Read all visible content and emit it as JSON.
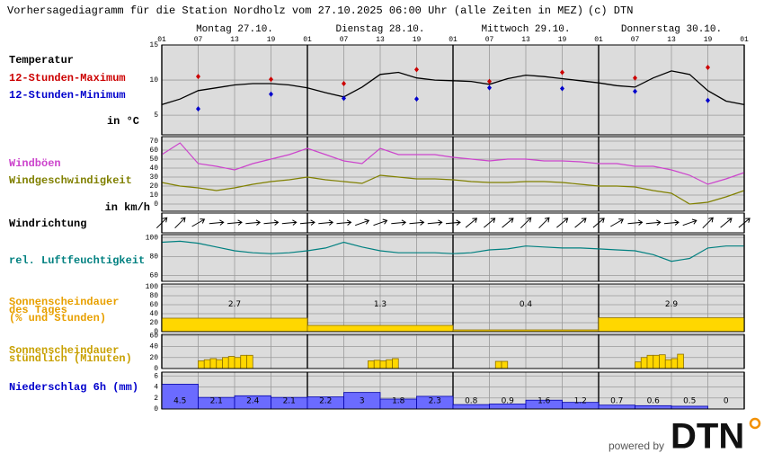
{
  "title": "Vorhersagediagramm für die Station Nordholz vom 27.10.2025 06:00 Uhr (alle Zeiten in MEZ)",
  "credit": "(c) DTN",
  "footer": {
    "powered_by": "powered by",
    "logo": "DTN"
  },
  "x_axis": {
    "xlim": [
      0,
      96
    ],
    "xticks": [
      {
        "value": 0,
        "label": "01"
      },
      {
        "value": 6,
        "label": "07"
      },
      {
        "value": 12,
        "label": "13"
      },
      {
        "value": 18,
        "label": "19"
      },
      {
        "value": 24,
        "label": "01"
      },
      {
        "value": 30,
        "label": "07"
      },
      {
        "value": 36,
        "label": "13"
      },
      {
        "value": 42,
        "label": "19"
      },
      {
        "value": 48,
        "label": "01"
      },
      {
        "value": 54,
        "label": "07"
      },
      {
        "value": 60,
        "label": "13"
      },
      {
        "value": 66,
        "label": "19"
      },
      {
        "value": 72,
        "label": "01"
      },
      {
        "value": 78,
        "label": "07"
      },
      {
        "value": 84,
        "label": "13"
      },
      {
        "value": 90,
        "label": "19"
      },
      {
        "value": 96,
        "label": "01"
      }
    ],
    "days": [
      "Montag 27.10.",
      "Dienstag 28.10.",
      "Mittwoch 29.10.",
      "Donnerstag 30.10."
    ]
  },
  "chart_data": [
    {
      "type": "line",
      "label": "Temperatur",
      "unit_label": "in °C",
      "ylim": [
        2.2,
        15
      ],
      "yticks": [
        5,
        10,
        15
      ],
      "grid": true,
      "line": {
        "color": "#000000",
        "x": [
          0,
          3,
          6,
          9,
          12,
          15,
          18,
          21,
          24,
          27,
          30,
          33,
          36,
          39,
          42,
          45,
          48,
          51,
          54,
          57,
          60,
          63,
          66,
          69,
          72,
          75,
          78,
          81,
          84,
          87,
          90,
          93,
          96
        ],
        "values": [
          6.5,
          7.3,
          8.5,
          8.9,
          9.3,
          9.5,
          9.5,
          9.3,
          8.9,
          8.2,
          7.6,
          9.0,
          10.8,
          11.1,
          10.3,
          10.0,
          9.9,
          9.8,
          9.4,
          10.2,
          10.7,
          10.5,
          10.2,
          9.9,
          9.6,
          9.2,
          9.0,
          10.3,
          11.3,
          10.8,
          8.5,
          7.0,
          6.5
        ]
      },
      "series": [
        {
          "name": "12-Stunden-Maximum",
          "color": "#cc0000",
          "x": [
            6,
            18,
            30,
            42,
            54,
            66,
            78,
            90
          ],
          "values": [
            10.5,
            10.1,
            9.5,
            11.5,
            9.8,
            11.1,
            10.3,
            11.8
          ]
        },
        {
          "name": "12-Stunden-Minimum",
          "color": "#0000cc",
          "x": [
            6,
            18,
            30,
            42,
            54,
            66,
            78,
            90
          ],
          "values": [
            5.9,
            8.0,
            7.4,
            7.3,
            8.9,
            8.8,
            8.4,
            7.1
          ]
        }
      ]
    },
    {
      "type": "line",
      "unit_label": "in km/h",
      "ylim": [
        -8,
        75
      ],
      "yticks": [
        0,
        10,
        20,
        30,
        40,
        50,
        60,
        70
      ],
      "grid": true,
      "x": [
        0,
        3,
        6,
        9,
        12,
        15,
        18,
        21,
        24,
        27,
        30,
        33,
        36,
        39,
        42,
        45,
        48,
        51,
        54,
        57,
        60,
        63,
        66,
        69,
        72,
        75,
        78,
        81,
        84,
        87,
        90,
        93,
        96
      ],
      "series": [
        {
          "name": "Windböen",
          "color": "#cc44cc",
          "values": [
            55,
            68,
            45,
            42,
            38,
            45,
            50,
            55,
            62,
            55,
            48,
            45,
            62,
            55,
            55,
            55,
            52,
            50,
            48,
            50,
            50,
            48,
            48,
            47,
            45,
            45,
            42,
            42,
            38,
            32,
            22,
            28,
            35
          ]
        },
        {
          "name": "Windgeschwindigkeit",
          "color": "#808000",
          "values": [
            24,
            20,
            18,
            15,
            18,
            22,
            25,
            27,
            30,
            27,
            25,
            23,
            32,
            30,
            28,
            28,
            27,
            25,
            24,
            24,
            25,
            25,
            24,
            22,
            20,
            20,
            19,
            15,
            12,
            0,
            2,
            8,
            15
          ]
        }
      ]
    },
    {
      "type": "arrows",
      "label": "Windrichtung",
      "x": [
        0,
        3,
        6,
        9,
        12,
        15,
        18,
        21,
        24,
        27,
        30,
        33,
        36,
        39,
        42,
        45,
        48,
        51,
        54,
        57,
        60,
        63,
        66,
        69,
        72,
        75,
        78,
        81,
        84,
        87,
        90,
        93,
        96
      ],
      "values": [
        225,
        225,
        240,
        265,
        265,
        265,
        265,
        265,
        265,
        265,
        265,
        250,
        250,
        265,
        265,
        265,
        265,
        230,
        230,
        230,
        225,
        225,
        230,
        230,
        230,
        240,
        265,
        265,
        265,
        250,
        225,
        230,
        230
      ]
    },
    {
      "type": "line",
      "ylim": [
        54,
        103
      ],
      "yticks": [
        60,
        80,
        100
      ],
      "grid": true,
      "x": [
        0,
        3,
        6,
        9,
        12,
        15,
        18,
        21,
        24,
        27,
        30,
        33,
        36,
        39,
        42,
        45,
        48,
        51,
        54,
        57,
        60,
        63,
        66,
        69,
        72,
        75,
        78,
        81,
        84,
        87,
        90,
        93,
        96
      ],
      "series": [
        {
          "name": "rel. Luftfeuchtigkeit",
          "color": "#008080",
          "values": [
            95,
            96,
            94,
            90,
            86,
            84,
            83,
            84,
            86,
            89,
            95,
            90,
            86,
            84,
            84,
            84,
            83,
            84,
            87,
            88,
            91,
            90,
            89,
            89,
            88,
            87,
            86,
            82,
            75,
            78,
            89,
            91,
            91
          ]
        }
      ]
    },
    {
      "type": "bar",
      "label": [
        "Sonnenscheindauer",
        "des Tages",
        "(% und Stunden)"
      ],
      "label_color": "#e8a000",
      "ylim": [
        0,
        106
      ],
      "yticks": [
        0,
        20,
        40,
        60,
        80,
        100
      ],
      "grid": true,
      "color": "#ffd700",
      "x": [
        0,
        24,
        48,
        72
      ],
      "values": [
        30,
        14,
        4,
        31
      ],
      "hours": [
        2.7,
        1.3,
        0.4,
        2.9
      ]
    },
    {
      "type": "bar",
      "label": [
        "Sonnenscheindauer",
        "stündlich (Minuten)"
      ],
      "label_color": "#c8a000",
      "ylim": [
        0,
        62
      ],
      "yticks": [
        0,
        20,
        40,
        60
      ],
      "grid": true,
      "color": "#ffd700",
      "x": [
        6,
        7,
        8,
        9,
        10,
        11,
        12,
        13,
        14,
        34,
        35,
        36,
        37,
        38,
        55,
        56,
        78,
        79,
        80,
        81,
        82,
        83,
        84,
        85
      ],
      "values": [
        14,
        16,
        18,
        16,
        20,
        22,
        20,
        24,
        24,
        14,
        15,
        14,
        16,
        18,
        13,
        13,
        12,
        20,
        24,
        24,
        25,
        16,
        18,
        26
      ]
    },
    {
      "type": "bar",
      "label": "Niederschlag 6h (mm)",
      "label_color": "#0000cc",
      "ylim": [
        0,
        6.7
      ],
      "yticks": [
        0,
        2,
        4,
        6
      ],
      "grid": true,
      "color": "#6b6bff",
      "data_labels": true,
      "x": [
        0,
        6,
        12,
        18,
        24,
        30,
        36,
        42,
        48,
        54,
        60,
        66,
        72,
        78,
        84,
        90
      ],
      "values": [
        4.5,
        2.1,
        2.4,
        2.1,
        2.2,
        3,
        1.8,
        2.3,
        0.8,
        0.9,
        1.6,
        1.2,
        0.7,
        0.6,
        0.5,
        0
      ]
    }
  ]
}
